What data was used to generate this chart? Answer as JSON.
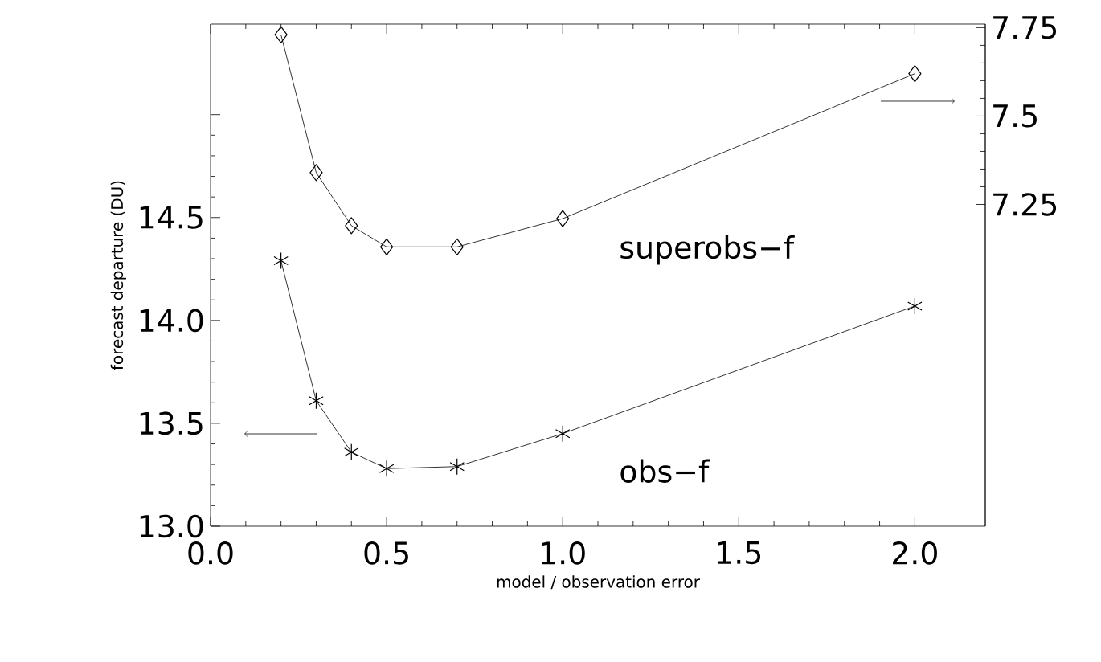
{
  "chart_data": {
    "type": "line",
    "xlabel": "model / observation error",
    "ylabel": "forecast departure (DU)",
    "x": [
      0.2,
      0.3,
      0.4,
      0.5,
      0.7,
      1.0,
      2.0
    ],
    "series": [
      {
        "name": "superobs−f",
        "color": "#000000",
        "marker": "diamond",
        "axis": "y2",
        "values": [
          7.73,
          7.34,
          7.19,
          7.13,
          7.13,
          7.21,
          7.62
        ]
      },
      {
        "name": "obs−f",
        "color": "#000000",
        "marker": "cross",
        "values": [
          14.29,
          13.61,
          13.36,
          13.28,
          13.29,
          13.45,
          14.07
        ]
      }
    ],
    "xlim": [
      0,
      2.2
    ],
    "xticks": [
      {
        "value": 0,
        "label": "0.0"
      },
      0.5,
      {
        "value": 1,
        "label": "1.0"
      },
      1.5,
      {
        "value": 2,
        "label": "2.0"
      }
    ],
    "ylim": [
      13.0,
      15.44
    ],
    "yticks": [
      {
        "value": 13,
        "label": "13.0"
      },
      13.5,
      {
        "value": 14,
        "label": "14.0"
      },
      14.5,
      {
        "value": 15,
        "label": null
      }
    ],
    "y2lim": [
      6.34,
      7.76
    ],
    "y2ticks": [
      7.25,
      7.5,
      7.75
    ],
    "grid": false,
    "line_style": "solid"
  }
}
